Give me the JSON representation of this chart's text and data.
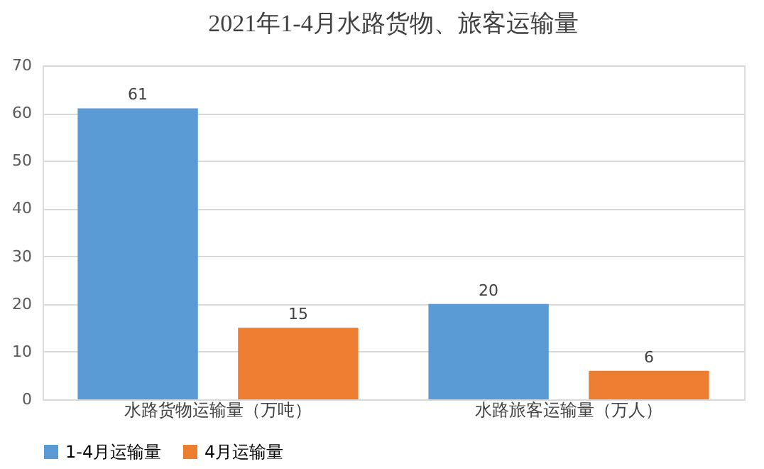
{
  "chart_data": {
    "type": "bar",
    "title": "2021年1-4月水路货物、旅客运输量",
    "categories": [
      "水路货物运输量（万吨）",
      "水路旅客运输量（万人）"
    ],
    "series": [
      {
        "name": "1-4月运输量",
        "color": "#5b9bd5",
        "values": [
          61,
          20
        ]
      },
      {
        "name": "4月运输量",
        "color": "#ed7d31",
        "values": [
          15,
          6
        ]
      }
    ],
    "ylim": [
      0,
      70
    ],
    "yticks": [
      0,
      10,
      20,
      30,
      40,
      50,
      60,
      70
    ],
    "grid": "y",
    "legend": "bottom",
    "data_labels": true
  }
}
